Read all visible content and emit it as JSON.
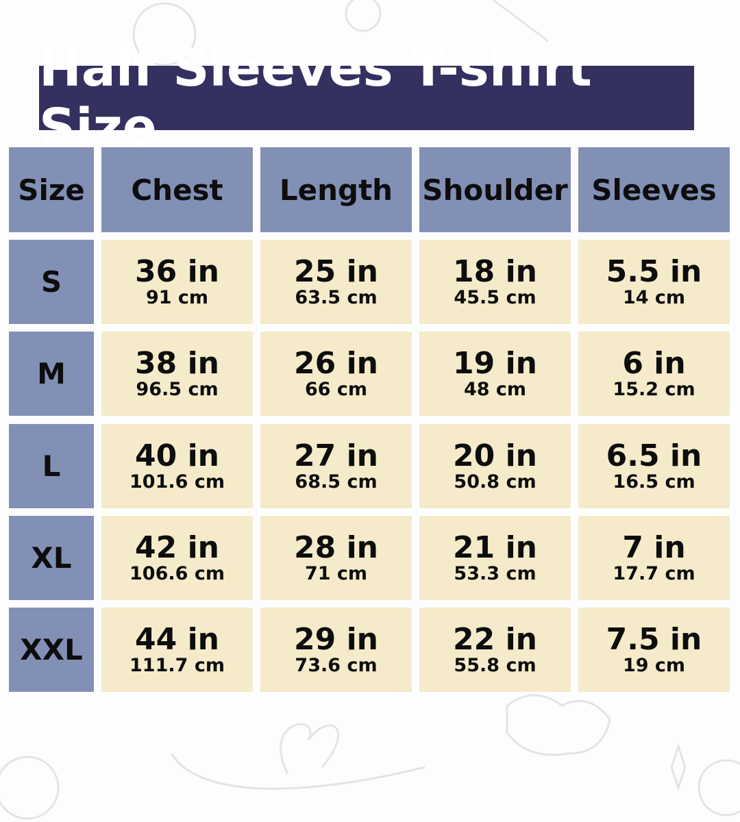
{
  "title": "Half Sleeves T-shirt Size",
  "colors": {
    "title_bg": "#34305f",
    "header_bg": "#8290b5",
    "cell_bg": "#f5ebca"
  },
  "headers": [
    "Size",
    "Chest",
    "Length",
    "Shoulder",
    "Sleeves"
  ],
  "rows": [
    {
      "size": "S",
      "values": [
        {
          "in": "36 in",
          "cm": "91 cm"
        },
        {
          "in": "25 in",
          "cm": "63.5 cm"
        },
        {
          "in": "18 in",
          "cm": "45.5 cm"
        },
        {
          "in": "5.5 in",
          "cm": "14 cm"
        }
      ]
    },
    {
      "size": "M",
      "values": [
        {
          "in": "38 in",
          "cm": "96.5 cm"
        },
        {
          "in": "26 in",
          "cm": "66 cm"
        },
        {
          "in": "19 in",
          "cm": "48 cm"
        },
        {
          "in": "6 in",
          "cm": "15.2 cm"
        }
      ]
    },
    {
      "size": "L",
      "values": [
        {
          "in": "40 in",
          "cm": "101.6 cm"
        },
        {
          "in": "27 in",
          "cm": "68.5 cm"
        },
        {
          "in": "20 in",
          "cm": "50.8 cm"
        },
        {
          "in": "6.5 in",
          "cm": "16.5 cm"
        }
      ]
    },
    {
      "size": "XL",
      "values": [
        {
          "in": "42 in",
          "cm": "106.6 cm"
        },
        {
          "in": "28 in",
          "cm": "71 cm"
        },
        {
          "in": "21 in",
          "cm": "53.3 cm"
        },
        {
          "in": "7 in",
          "cm": "17.7 cm"
        }
      ]
    },
    {
      "size": "XXL",
      "values": [
        {
          "in": "44 in",
          "cm": "111.7 cm"
        },
        {
          "in": "29 in",
          "cm": "73.6 cm"
        },
        {
          "in": "22 in",
          "cm": "55.8 cm"
        },
        {
          "in": "7.5 in",
          "cm": "19 cm"
        }
      ]
    }
  ]
}
